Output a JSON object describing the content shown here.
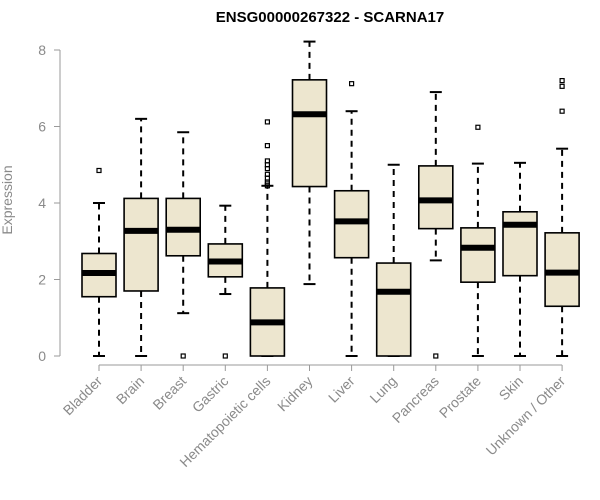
{
  "chart_data": {
    "type": "boxplot",
    "title": "ENSG00000267322 - SCARNA17",
    "xlabel": "",
    "ylabel": "Expression",
    "ylim": [
      0,
      8
    ],
    "yticks": [
      0,
      2,
      4,
      6,
      8
    ],
    "box_fill": "#ede6cf",
    "categories": [
      "Bladder",
      "Brain",
      "Breast",
      "Gastric",
      "Hematopoietic cells",
      "Kidney",
      "Liver",
      "Lung",
      "Pancreas",
      "Prostate",
      "Skin",
      "Unknown / Other"
    ],
    "boxes": [
      {
        "min": 0,
        "q1": 1.55,
        "median": 2.17,
        "q3": 2.68,
        "max": 4.0,
        "outliers": [
          4.85
        ]
      },
      {
        "min": 0,
        "q1": 1.7,
        "median": 3.27,
        "q3": 4.12,
        "max": 6.2,
        "outliers": []
      },
      {
        "min": 1.12,
        "q1": 2.62,
        "median": 3.3,
        "q3": 4.12,
        "max": 5.85,
        "outliers": [
          0
        ]
      },
      {
        "min": 1.62,
        "q1": 2.07,
        "median": 2.47,
        "q3": 2.93,
        "max": 3.93,
        "outliers": [
          0
        ]
      },
      {
        "min": 0,
        "q1": 0,
        "median": 0.88,
        "q3": 1.78,
        "max": 4.45,
        "outliers": [
          4.45,
          4.5,
          4.55,
          4.65,
          4.75,
          4.9,
          5.0,
          5.1,
          5.5,
          6.12
        ]
      },
      {
        "min": 1.88,
        "q1": 4.43,
        "median": 6.32,
        "q3": 7.22,
        "max": 8.22,
        "outliers": []
      },
      {
        "min": 0,
        "q1": 2.57,
        "median": 3.52,
        "q3": 4.32,
        "max": 6.4,
        "outliers": [
          7.12
        ]
      },
      {
        "min": 0,
        "q1": 0,
        "median": 1.68,
        "q3": 2.43,
        "max": 5.0,
        "outliers": []
      },
      {
        "min": 2.5,
        "q1": 3.33,
        "median": 4.07,
        "q3": 4.97,
        "max": 6.9,
        "outliers": [
          0
        ]
      },
      {
        "min": 0,
        "q1": 1.93,
        "median": 2.83,
        "q3": 3.35,
        "max": 5.03,
        "outliers": [
          5.98
        ]
      },
      {
        "min": 0,
        "q1": 2.1,
        "median": 3.43,
        "q3": 3.77,
        "max": 5.05,
        "outliers": []
      },
      {
        "min": 0,
        "q1": 1.3,
        "median": 2.18,
        "q3": 3.22,
        "max": 5.42,
        "outliers": [
          6.4,
          7.05,
          7.2
        ]
      }
    ]
  }
}
